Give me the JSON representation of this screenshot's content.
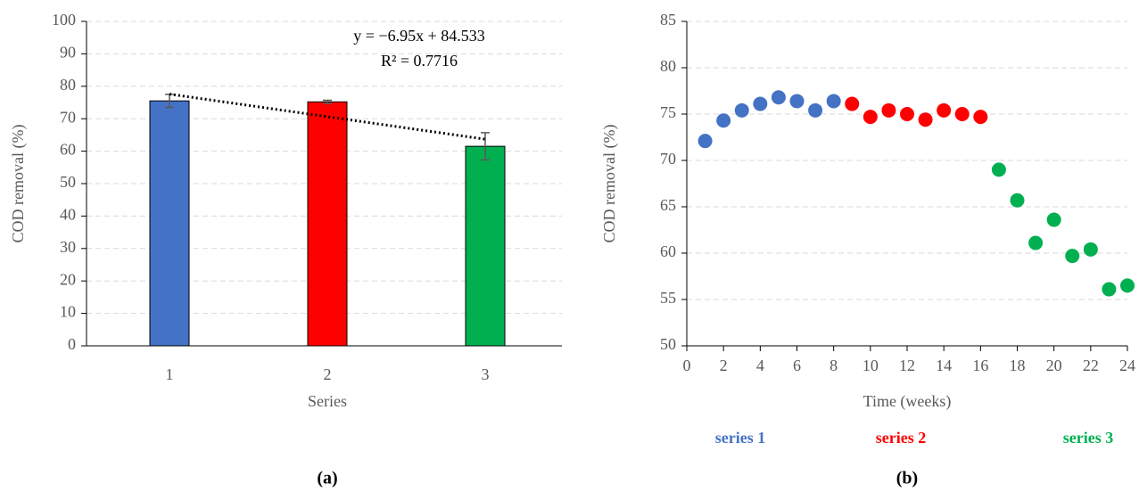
{
  "chart_data": [
    {
      "type": "bar",
      "caption": "(a)",
      "x_label": "Series",
      "y_label": "COD removal (%)",
      "categories": [
        "1",
        "2",
        "3"
      ],
      "values": [
        75.5,
        75.2,
        61.5
      ],
      "errors": [
        2,
        0.5,
        4.2
      ],
      "colors": [
        "#4472c4",
        "#ff0000",
        "#00b050"
      ],
      "ylim": [
        0,
        100
      ],
      "yticks": [
        0,
        10,
        20,
        30,
        40,
        50,
        60,
        70,
        80,
        90,
        100
      ],
      "grid": true,
      "trendline": {
        "equation": "y = −6.95x + 84.533",
        "r2": "R² = 0.7716",
        "slope": -6.95,
        "intercept": 84.533
      }
    },
    {
      "type": "scatter",
      "caption": "(b)",
      "x_label": "Time (weeks)",
      "y_label": "COD removal (%)",
      "xlim": [
        0,
        24
      ],
      "xticks": [
        0,
        2,
        4,
        6,
        8,
        10,
        12,
        14,
        16,
        18,
        20,
        22,
        24
      ],
      "ylim": [
        50,
        85
      ],
      "yticks": [
        50,
        55,
        60,
        65,
        70,
        75,
        80,
        85
      ],
      "grid": true,
      "series": [
        {
          "name": "series 1",
          "color": "#4472c4",
          "x": [
            1,
            2,
            3,
            4,
            5,
            6,
            7,
            8
          ],
          "values": [
            72.1,
            74.3,
            75.4,
            76.1,
            76.8,
            76.4,
            75.4,
            76.4
          ]
        },
        {
          "name": "series 2",
          "color": "#ff0000",
          "x": [
            9,
            10,
            11,
            12,
            13,
            14,
            15,
            16
          ],
          "values": [
            76.1,
            74.7,
            75.4,
            75.0,
            74.4,
            75.4,
            75.0,
            74.7
          ]
        },
        {
          "name": "series 3",
          "color": "#00b050",
          "x": [
            17,
            18,
            19,
            20,
            21,
            22,
            23,
            24
          ],
          "values": [
            69.0,
            65.7,
            61.1,
            63.6,
            59.7,
            60.4,
            56.1,
            56.5
          ]
        }
      ]
    }
  ]
}
